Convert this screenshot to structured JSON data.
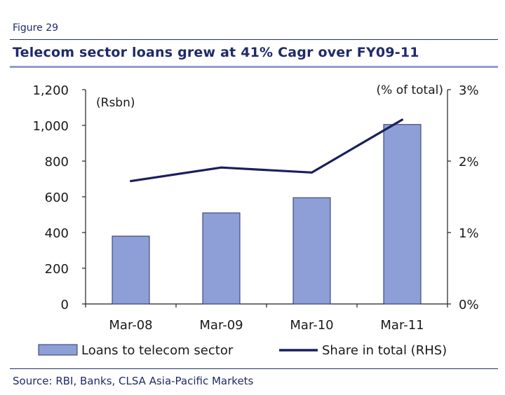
{
  "figure_label": "Figure 29",
  "title": "Telecom sector loans grew at 41% Cagr over FY09-11",
  "source": "Source: RBI, Banks, CLSA Asia-Pacific Markets",
  "colors": {
    "bar_fill": "#8d9fd6",
    "bar_stroke": "#2b3570",
    "line": "#1a1f5e",
    "accent": "#1f2a6b"
  },
  "chart_data": {
    "type": "bar+line",
    "categories": [
      "Mar-08",
      "Mar-09",
      "Mar-10",
      "Mar-11"
    ],
    "series": [
      {
        "name": "Loans to telecom sector",
        "type": "bar",
        "axis": "left",
        "values": [
          380,
          510,
          595,
          1005
        ]
      },
      {
        "name": "Share in total (RHS)",
        "type": "line",
        "axis": "right",
        "values": [
          1.72,
          1.91,
          1.84,
          2.58
        ]
      }
    ],
    "left_axis": {
      "unit_label": "(Rsbn)",
      "ylim": [
        0,
        1200
      ],
      "ticks": [
        0,
        200,
        400,
        600,
        800,
        1000,
        1200
      ],
      "tick_labels": [
        "0",
        "200",
        "400",
        "600",
        "800",
        "1,000",
        "1,200"
      ]
    },
    "right_axis": {
      "unit_label": "(% of total)",
      "ylim": [
        0,
        3
      ],
      "ticks": [
        0,
        1,
        2,
        3
      ],
      "tick_labels": [
        "0%",
        "1%",
        "2%",
        "3%"
      ]
    },
    "grid": false,
    "legend_position": "bottom"
  }
}
